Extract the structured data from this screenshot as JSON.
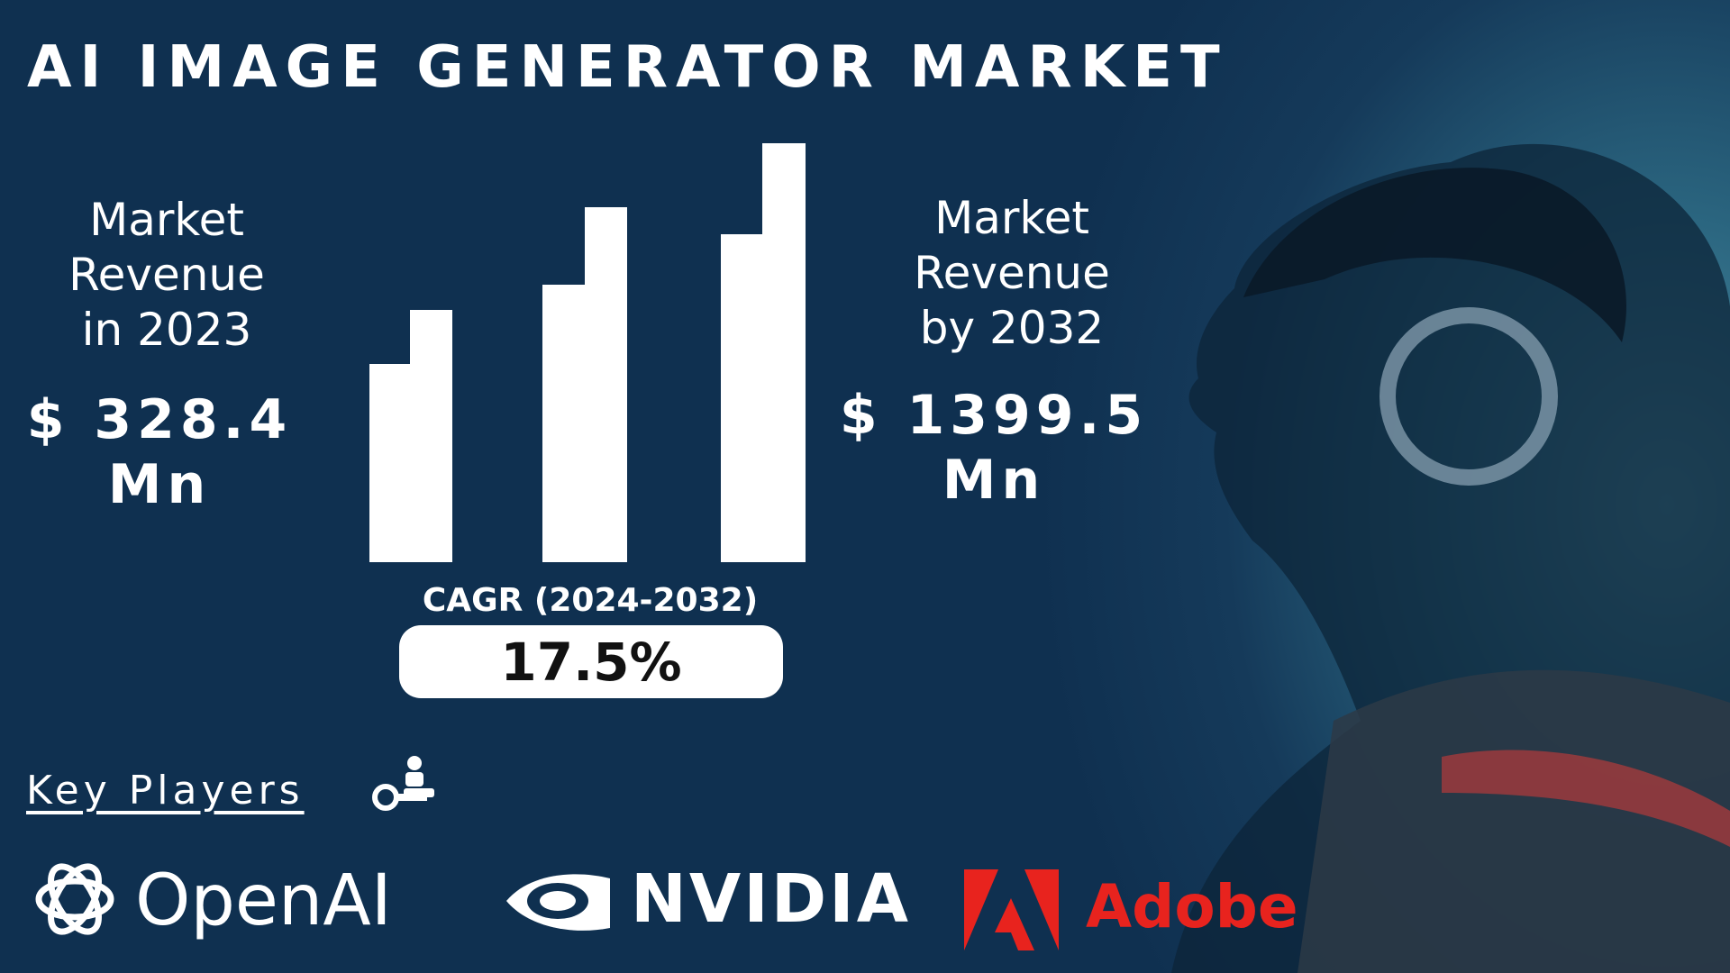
{
  "header": {
    "title": "AI IMAGE GENERATOR MARKET"
  },
  "left": {
    "label_lines": [
      "Market",
      "Revenue",
      "in 2023"
    ],
    "value_lines": [
      "$ 328.4",
      "Mn"
    ]
  },
  "right": {
    "label_lines": [
      "Market",
      "Revenue",
      "by 2032"
    ],
    "value_lines": [
      "$ 1399.5",
      "Mn"
    ]
  },
  "cagr": {
    "label": "CAGR (2024-2032)",
    "value": "17.5%"
  },
  "key_players": {
    "heading": "Key Players",
    "players": [
      "OpenAI",
      "NVIDIA",
      "Adobe"
    ]
  }
}
